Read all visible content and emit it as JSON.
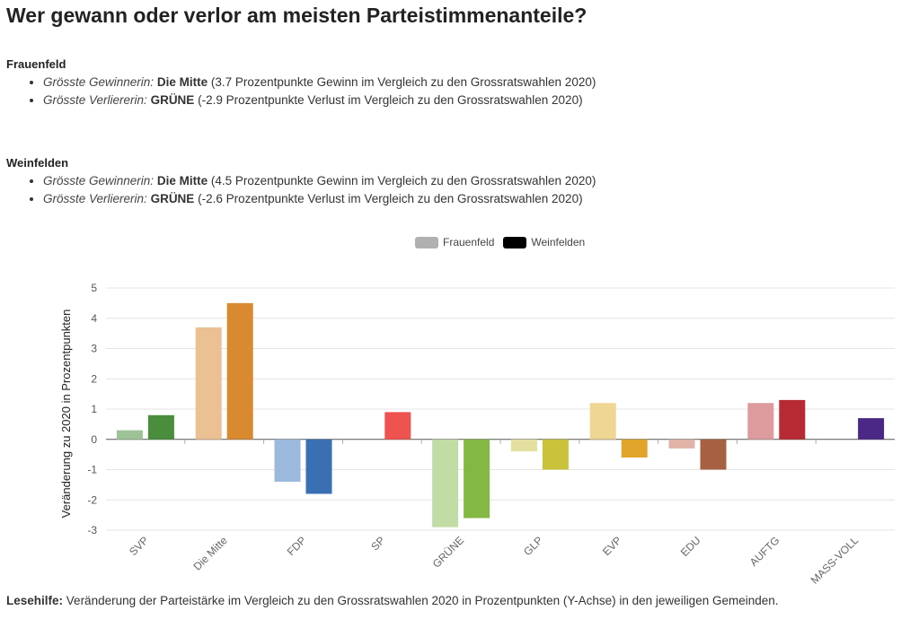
{
  "title": "Wer gewann oder verlor am meisten Parteistimmenanteile?",
  "sections": [
    {
      "town": "Frauenfeld",
      "winner_label": "Grösste Gewinnerin:",
      "winner_party": "Die Mitte",
      "winner_text": "(3.7 Prozentpunkte Gewinn im Vergleich zu den Grossratswahlen 2020)",
      "loser_label": "Grösste Verliererin:",
      "loser_party": "GRÜNE",
      "loser_text": "(-2.9 Prozentpunkte Verlust im Vergleich zu den Grossratswahlen 2020)"
    },
    {
      "town": "Weinfelden",
      "winner_label": "Grösste Gewinnerin:",
      "winner_party": "Die Mitte",
      "winner_text": "(4.5 Prozentpunkte Gewinn im Vergleich zu den Grossratswahlen 2020)",
      "loser_label": "Grösste Verliererin:",
      "loser_party": "GRÜNE",
      "loser_text": "(-2.6 Prozentpunkte Verlust im Vergleich zu den Grossratswahlen 2020)"
    }
  ],
  "footnote": {
    "label": "Lesehilfe:",
    "text": "Veränderung der Parteistärke im Vergleich zu den Grossratswahlen 2020 in Prozentpunkten (Y-Achse) in den jeweiligen Gemeinden."
  },
  "legend": {
    "items": [
      {
        "label": "Frauenfeld",
        "color": "#b0b0b0"
      },
      {
        "label": "Weinfelden",
        "color": "#000000"
      }
    ]
  },
  "chart_data": {
    "type": "bar",
    "categories": [
      "SVP",
      "Die Mitte",
      "FDP",
      "SP",
      "GRÜNE",
      "GLP",
      "EVP",
      "EDU",
      "AUFTG",
      "MASS-VOLL"
    ],
    "series": [
      {
        "name": "Frauenfeld",
        "values": [
          0.3,
          3.7,
          -1.4,
          null,
          -2.9,
          -0.4,
          1.2,
          -0.3,
          1.2,
          null
        ]
      },
      {
        "name": "Weinfelden",
        "values": [
          0.8,
          4.5,
          -1.8,
          0.9,
          -2.6,
          -1.0,
          -0.6,
          -1.0,
          1.3,
          0.7
        ]
      }
    ],
    "colors": {
      "Frauenfeld": [
        "#9dc397",
        "#ebc194",
        "#9db8dd",
        "#ef9f9b",
        "#c1dca5",
        "#e3e09f",
        "#efd693",
        "#e0b3a8",
        "#dd9b9d",
        "#a99bc7"
      ],
      "Weinfelden": [
        "#4a8d3d",
        "#d9892f",
        "#3a6fb4",
        "#ef534f",
        "#83b844",
        "#c9c23a",
        "#e2a52c",
        "#a66042",
        "#b72a33",
        "#4b2886"
      ]
    },
    "ylabel": "Veränderung zu 2020 in Prozentpunkten",
    "ylim": [
      -3,
      5
    ],
    "yticks": [
      -3,
      -2,
      -1,
      0,
      1,
      2,
      3,
      4,
      5
    ],
    "grid": true,
    "legend_position": "top"
  }
}
